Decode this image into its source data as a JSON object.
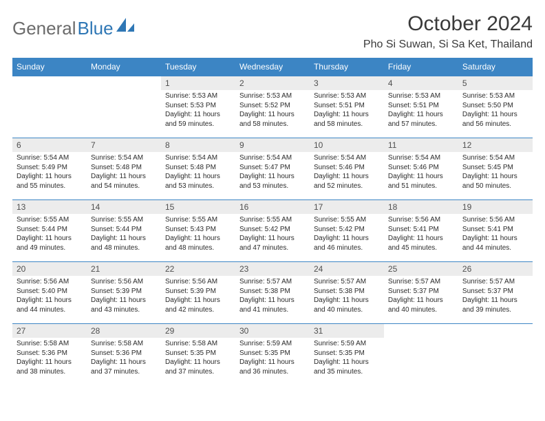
{
  "logo": {
    "text_gray": "General",
    "text_blue": "Blue"
  },
  "title": "October 2024",
  "location": "Pho Si Suwan, Si Sa Ket, Thailand",
  "colors": {
    "header_bg": "#3c85c4",
    "header_text": "#ffffff",
    "daynum_bg": "#ececec",
    "daynum_text": "#4f4f4f",
    "body_text": "#2a2a2a",
    "logo_gray": "#6b6b6b",
    "logo_blue": "#2f77b5",
    "row_divider": "#3c85c4"
  },
  "day_headers": [
    "Sunday",
    "Monday",
    "Tuesday",
    "Wednesday",
    "Thursday",
    "Friday",
    "Saturday"
  ],
  "weeks": [
    [
      null,
      null,
      {
        "n": "1",
        "sr": "Sunrise: 5:53 AM",
        "ss": "Sunset: 5:53 PM",
        "dl": "Daylight: 11 hours and 59 minutes."
      },
      {
        "n": "2",
        "sr": "Sunrise: 5:53 AM",
        "ss": "Sunset: 5:52 PM",
        "dl": "Daylight: 11 hours and 58 minutes."
      },
      {
        "n": "3",
        "sr": "Sunrise: 5:53 AM",
        "ss": "Sunset: 5:51 PM",
        "dl": "Daylight: 11 hours and 58 minutes."
      },
      {
        "n": "4",
        "sr": "Sunrise: 5:53 AM",
        "ss": "Sunset: 5:51 PM",
        "dl": "Daylight: 11 hours and 57 minutes."
      },
      {
        "n": "5",
        "sr": "Sunrise: 5:53 AM",
        "ss": "Sunset: 5:50 PM",
        "dl": "Daylight: 11 hours and 56 minutes."
      }
    ],
    [
      {
        "n": "6",
        "sr": "Sunrise: 5:54 AM",
        "ss": "Sunset: 5:49 PM",
        "dl": "Daylight: 11 hours and 55 minutes."
      },
      {
        "n": "7",
        "sr": "Sunrise: 5:54 AM",
        "ss": "Sunset: 5:48 PM",
        "dl": "Daylight: 11 hours and 54 minutes."
      },
      {
        "n": "8",
        "sr": "Sunrise: 5:54 AM",
        "ss": "Sunset: 5:48 PM",
        "dl": "Daylight: 11 hours and 53 minutes."
      },
      {
        "n": "9",
        "sr": "Sunrise: 5:54 AM",
        "ss": "Sunset: 5:47 PM",
        "dl": "Daylight: 11 hours and 53 minutes."
      },
      {
        "n": "10",
        "sr": "Sunrise: 5:54 AM",
        "ss": "Sunset: 5:46 PM",
        "dl": "Daylight: 11 hours and 52 minutes."
      },
      {
        "n": "11",
        "sr": "Sunrise: 5:54 AM",
        "ss": "Sunset: 5:46 PM",
        "dl": "Daylight: 11 hours and 51 minutes."
      },
      {
        "n": "12",
        "sr": "Sunrise: 5:54 AM",
        "ss": "Sunset: 5:45 PM",
        "dl": "Daylight: 11 hours and 50 minutes."
      }
    ],
    [
      {
        "n": "13",
        "sr": "Sunrise: 5:55 AM",
        "ss": "Sunset: 5:44 PM",
        "dl": "Daylight: 11 hours and 49 minutes."
      },
      {
        "n": "14",
        "sr": "Sunrise: 5:55 AM",
        "ss": "Sunset: 5:44 PM",
        "dl": "Daylight: 11 hours and 48 minutes."
      },
      {
        "n": "15",
        "sr": "Sunrise: 5:55 AM",
        "ss": "Sunset: 5:43 PM",
        "dl": "Daylight: 11 hours and 48 minutes."
      },
      {
        "n": "16",
        "sr": "Sunrise: 5:55 AM",
        "ss": "Sunset: 5:42 PM",
        "dl": "Daylight: 11 hours and 47 minutes."
      },
      {
        "n": "17",
        "sr": "Sunrise: 5:55 AM",
        "ss": "Sunset: 5:42 PM",
        "dl": "Daylight: 11 hours and 46 minutes."
      },
      {
        "n": "18",
        "sr": "Sunrise: 5:56 AM",
        "ss": "Sunset: 5:41 PM",
        "dl": "Daylight: 11 hours and 45 minutes."
      },
      {
        "n": "19",
        "sr": "Sunrise: 5:56 AM",
        "ss": "Sunset: 5:41 PM",
        "dl": "Daylight: 11 hours and 44 minutes."
      }
    ],
    [
      {
        "n": "20",
        "sr": "Sunrise: 5:56 AM",
        "ss": "Sunset: 5:40 PM",
        "dl": "Daylight: 11 hours and 44 minutes."
      },
      {
        "n": "21",
        "sr": "Sunrise: 5:56 AM",
        "ss": "Sunset: 5:39 PM",
        "dl": "Daylight: 11 hours and 43 minutes."
      },
      {
        "n": "22",
        "sr": "Sunrise: 5:56 AM",
        "ss": "Sunset: 5:39 PM",
        "dl": "Daylight: 11 hours and 42 minutes."
      },
      {
        "n": "23",
        "sr": "Sunrise: 5:57 AM",
        "ss": "Sunset: 5:38 PM",
        "dl": "Daylight: 11 hours and 41 minutes."
      },
      {
        "n": "24",
        "sr": "Sunrise: 5:57 AM",
        "ss": "Sunset: 5:38 PM",
        "dl": "Daylight: 11 hours and 40 minutes."
      },
      {
        "n": "25",
        "sr": "Sunrise: 5:57 AM",
        "ss": "Sunset: 5:37 PM",
        "dl": "Daylight: 11 hours and 40 minutes."
      },
      {
        "n": "26",
        "sr": "Sunrise: 5:57 AM",
        "ss": "Sunset: 5:37 PM",
        "dl": "Daylight: 11 hours and 39 minutes."
      }
    ],
    [
      {
        "n": "27",
        "sr": "Sunrise: 5:58 AM",
        "ss": "Sunset: 5:36 PM",
        "dl": "Daylight: 11 hours and 38 minutes."
      },
      {
        "n": "28",
        "sr": "Sunrise: 5:58 AM",
        "ss": "Sunset: 5:36 PM",
        "dl": "Daylight: 11 hours and 37 minutes."
      },
      {
        "n": "29",
        "sr": "Sunrise: 5:58 AM",
        "ss": "Sunset: 5:35 PM",
        "dl": "Daylight: 11 hours and 37 minutes."
      },
      {
        "n": "30",
        "sr": "Sunrise: 5:59 AM",
        "ss": "Sunset: 5:35 PM",
        "dl": "Daylight: 11 hours and 36 minutes."
      },
      {
        "n": "31",
        "sr": "Sunrise: 5:59 AM",
        "ss": "Sunset: 5:35 PM",
        "dl": "Daylight: 11 hours and 35 minutes."
      },
      null,
      null
    ]
  ]
}
